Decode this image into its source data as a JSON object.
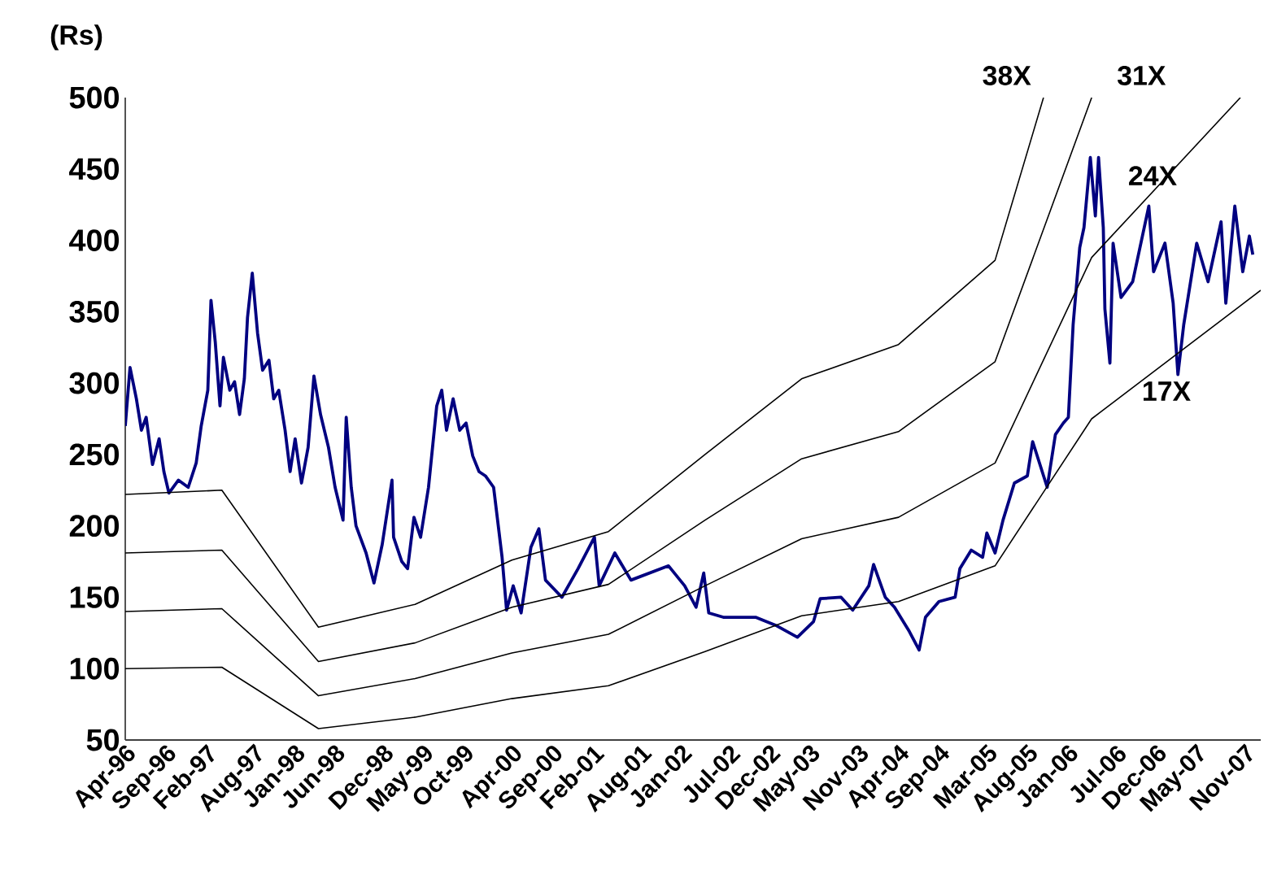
{
  "chart_data": {
    "type": "line",
    "ylabel": "(Rs)",
    "xlim": [
      "1996-04-01",
      "2007-12-31"
    ],
    "ylim": [
      50,
      500
    ],
    "yticks": [
      50,
      100,
      150,
      200,
      250,
      300,
      350,
      400,
      450,
      500
    ],
    "xticks": [
      {
        "value": "1996-04",
        "label": "Apr-96"
      },
      {
        "value": "1996-09",
        "label": "Sep-96"
      },
      {
        "value": "1997-02",
        "label": "Feb-97"
      },
      {
        "value": "1997-08",
        "label": "Aug-97"
      },
      {
        "value": "1998-01",
        "label": "Jan-98"
      },
      {
        "value": "1998-06",
        "label": "Jun-98"
      },
      {
        "value": "1998-12",
        "label": "Dec-98"
      },
      {
        "value": "1999-05",
        "label": "May-99"
      },
      {
        "value": "1999-10",
        "label": "Oct-99"
      },
      {
        "value": "2000-04",
        "label": "Apr-00"
      },
      {
        "value": "2000-09",
        "label": "Sep-00"
      },
      {
        "value": "2001-02",
        "label": "Feb-01"
      },
      {
        "value": "2001-08",
        "label": "Aug-01"
      },
      {
        "value": "2002-01",
        "label": "Jan-02"
      },
      {
        "value": "2002-07",
        "label": "Jul-02"
      },
      {
        "value": "2002-12",
        "label": "Dec-02"
      },
      {
        "value": "2003-05",
        "label": "May-03"
      },
      {
        "value": "2003-11",
        "label": "Nov-03"
      },
      {
        "value": "2004-04",
        "label": "Apr-04"
      },
      {
        "value": "2004-09",
        "label": "Sep-04"
      },
      {
        "value": "2005-03",
        "label": "Mar-05"
      },
      {
        "value": "2005-08",
        "label": "Aug-05"
      },
      {
        "value": "2006-01",
        "label": "Jan-06"
      },
      {
        "value": "2006-07",
        "label": "Jul-06"
      },
      {
        "value": "2006-12",
        "label": "Dec-06"
      },
      {
        "value": "2007-05",
        "label": "May-07"
      },
      {
        "value": "2007-11",
        "label": "Nov-07"
      }
    ],
    "series": [
      {
        "color": "#000080",
        "x": [
          "1996-04-01",
          "1996-04-19",
          "1996-05-13",
          "1996-06-01",
          "1996-06-19",
          "1996-07-13",
          "1996-08-07",
          "1996-08-25",
          "1996-09-13",
          "1996-10-19",
          "1996-11-25",
          "1996-12-25",
          "1997-01-13",
          "1997-02-07",
          "1997-02-19",
          "1997-03-07",
          "1997-03-25",
          "1997-04-07",
          "1997-05-01",
          "1997-05-19",
          "1997-06-07",
          "1997-06-25",
          "1997-07-07",
          "1997-07-25",
          "1997-08-14",
          "1997-09-02",
          "1997-09-26",
          "1997-10-14",
          "1997-11-02",
          "1997-11-26",
          "1997-12-15",
          "1998-01-03",
          "1998-01-27",
          "1998-02-21",
          "1998-03-15",
          "1998-04-09",
          "1998-05-09",
          "1998-06-03",
          "1998-07-03",
          "1998-07-15",
          "1998-08-03",
          "1998-08-21",
          "1998-09-28",
          "1998-10-28",
          "1998-11-28",
          "1999-01-04",
          "1999-01-10",
          "1999-02-10",
          "1999-03-04",
          "1999-03-28",
          "1999-04-22",
          "1999-05-22",
          "1999-06-22",
          "1999-07-11",
          "1999-07-29",
          "1999-08-23",
          "1999-09-17",
          "1999-10-11",
          "1999-11-05",
          "1999-11-29",
          "1999-12-23",
          "2000-01-23",
          "2000-02-24",
          "2000-03-12",
          "2000-04-06",
          "2000-05-06",
          "2000-06-12",
          "2000-07-12",
          "2000-08-06",
          "2000-10-07",
          "2000-12-07",
          "2001-02-07",
          "2001-02-25",
          "2001-04-25",
          "2001-06-25",
          "2001-11-14",
          "2002-01-14",
          "2002-02-26",
          "2002-03-27",
          "2002-04-15",
          "2002-06-09",
          "2002-10-09",
          "2002-12-28",
          "2003-03-16",
          "2003-05-16",
          "2003-06-10",
          "2003-08-28",
          "2003-10-11",
          "2003-12-11",
          "2003-12-29",
          "2004-02-11",
          "2004-03-17",
          "2004-05-12",
          "2004-06-18",
          "2004-07-12",
          "2004-09-01",
          "2004-11-01",
          "2004-11-19",
          "2005-01-01",
          "2005-02-13",
          "2005-03-01",
          "2005-04-01",
          "2005-05-01",
          "2005-06-13",
          "2005-08-01",
          "2005-08-21",
          "2005-10-15",
          "2005-11-15",
          "2005-12-15",
          "2006-01-03",
          "2006-01-21",
          "2006-02-15",
          "2006-03-03",
          "2006-03-27",
          "2006-04-15",
          "2006-04-27",
          "2006-05-15",
          "2006-05-21",
          "2006-06-09",
          "2006-06-21",
          "2006-07-21",
          "2006-09-03",
          "2006-11-03",
          "2006-11-21",
          "2007-01-03",
          "2007-02-03",
          "2007-02-21",
          "2007-03-15",
          "2007-05-03",
          "2007-06-15",
          "2007-08-03",
          "2007-08-21",
          "2007-09-24",
          "2007-10-24",
          "2007-11-18",
          "2007-12-01"
        ],
        "values": [
          270,
          311,
          289,
          267,
          276,
          243,
          261,
          238,
          223,
          232,
          227,
          244,
          270,
          295,
          358,
          329,
          284,
          318,
          295,
          301,
          278,
          303,
          346,
          377,
          335,
          309,
          316,
          289,
          295,
          267,
          238,
          261,
          230,
          255,
          305,
          278,
          255,
          227,
          204,
          276,
          227,
          200,
          181,
          160,
          187,
          232,
          192,
          175,
          170,
          206,
          192,
          227,
          284,
          295,
          267,
          289,
          267,
          272,
          249,
          238,
          235,
          227,
          178,
          141,
          158,
          139,
          185,
          198,
          162,
          150,
          170,
          192,
          158,
          181,
          162,
          172,
          158,
          143,
          167,
          139,
          136,
          136,
          130,
          122,
          133,
          149,
          150,
          141,
          158,
          173,
          150,
          143,
          126,
          113,
          136,
          147,
          150,
          170,
          183,
          178,
          195,
          181,
          204,
          230,
          235,
          259,
          227,
          264,
          272,
          276,
          341,
          395,
          409,
          458,
          417,
          458,
          409,
          352,
          314,
          398,
          360,
          371,
          424,
          378,
          398,
          356,
          306,
          341,
          398,
          371,
          413,
          356,
          424,
          378,
          403,
          390
        ]
      },
      {
        "name": "38X",
        "color": "#000000",
        "x": [
          "1996-04-01",
          "1997-04-01",
          "1998-04-01",
          "1999-04-01",
          "2000-04-01",
          "2001-04-01",
          "2002-04-01",
          "2003-04-01",
          "2004-04-01",
          "2005-04-01",
          "2005-10-01"
        ],
        "values": [
          222,
          225,
          129,
          145,
          176,
          196,
          250,
          303,
          327,
          386,
          500
        ]
      },
      {
        "name": "31X",
        "color": "#000000",
        "x": [
          "1996-04-01",
          "1997-04-01",
          "1998-04-01",
          "1999-04-01",
          "2000-04-01",
          "2001-04-01",
          "2002-04-01",
          "2003-04-01",
          "2004-04-01",
          "2005-04-01",
          "2006-04-01"
        ],
        "values": [
          181,
          183,
          105,
          118,
          143,
          159,
          204,
          247,
          266,
          315,
          500
        ]
      },
      {
        "name": "24X",
        "color": "#000000",
        "x": [
          "1996-04-01",
          "1997-04-01",
          "1998-04-01",
          "1999-04-01",
          "2000-04-01",
          "2001-04-01",
          "2002-04-01",
          "2003-04-01",
          "2004-04-01",
          "2005-04-01",
          "2006-04-01",
          "2007-10-15"
        ],
        "values": [
          140,
          142,
          81,
          93,
          111,
          124,
          158,
          191,
          206,
          244,
          388,
          500
        ]
      },
      {
        "name": "17X",
        "color": "#000000",
        "x": [
          "1996-04-01",
          "1997-04-01",
          "1998-04-01",
          "1999-04-01",
          "2000-04-01",
          "2001-04-01",
          "2002-04-01",
          "2003-04-01",
          "2004-04-01",
          "2005-04-01",
          "2006-04-01",
          "2007-12-31"
        ],
        "values": [
          100,
          101,
          58,
          66,
          79,
          88,
          112,
          137,
          147,
          172,
          275,
          365
        ]
      }
    ]
  }
}
